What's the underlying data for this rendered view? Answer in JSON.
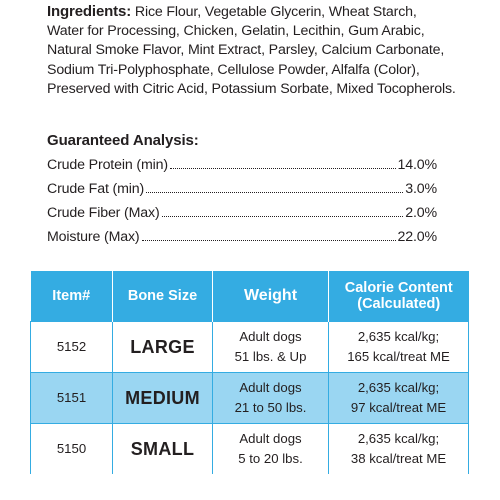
{
  "ingredients": {
    "label": "Ingredients:",
    "text": "Rice Flour, Vegetable Glycerin, Wheat Starch, Water for Processing, Chicken, Gelatin, Lecithin, Gum Arabic, Natural Smoke Flavor, Mint Extract, Parsley, Calcium Carbonate, Sodium Tri-Polyphosphate, Cellulose Powder, Alfalfa (Color), Preserved with Citric Acid, Potassium Sorbate, Mixed Tocopherols."
  },
  "analysis": {
    "title": "Guaranteed Analysis:",
    "rows": [
      {
        "name": "Crude Protein (min)",
        "value": "14.0%"
      },
      {
        "name": "Crude Fat (min)",
        "value": "3.0%"
      },
      {
        "name": "Crude Fiber (Max)",
        "value": "2.0%"
      },
      {
        "name": "Moisture (Max)",
        "value": "22.0%"
      }
    ]
  },
  "table": {
    "headers": {
      "item": "Item#",
      "size": "Bone Size",
      "weight": "Weight",
      "calorie_line1": "Calorie Content",
      "calorie_line2": "(Calculated)"
    },
    "rows": [
      {
        "item": "5152",
        "size": "LARGE",
        "weight1": "Adult dogs",
        "weight2": "51 lbs. & Up",
        "cal1": "2,635 kcal/kg;",
        "cal2": "165 kcal/treat ME"
      },
      {
        "item": "5151",
        "size": "MEDIUM",
        "weight1": "Adult dogs",
        "weight2": "21 to 50 lbs.",
        "cal1": "2,635 kcal/kg;",
        "cal2": "97 kcal/treat ME"
      },
      {
        "item": "5150",
        "size": "SMALL",
        "weight1": "Adult dogs",
        "weight2": "5 to 20 lbs.",
        "cal1": "2,635 kcal/kg;",
        "cal2": "38 kcal/treat ME"
      }
    ]
  },
  "colors": {
    "header_blue": "#34ace2",
    "row_highlight": "#9ad6f2",
    "text": "#231f20"
  }
}
